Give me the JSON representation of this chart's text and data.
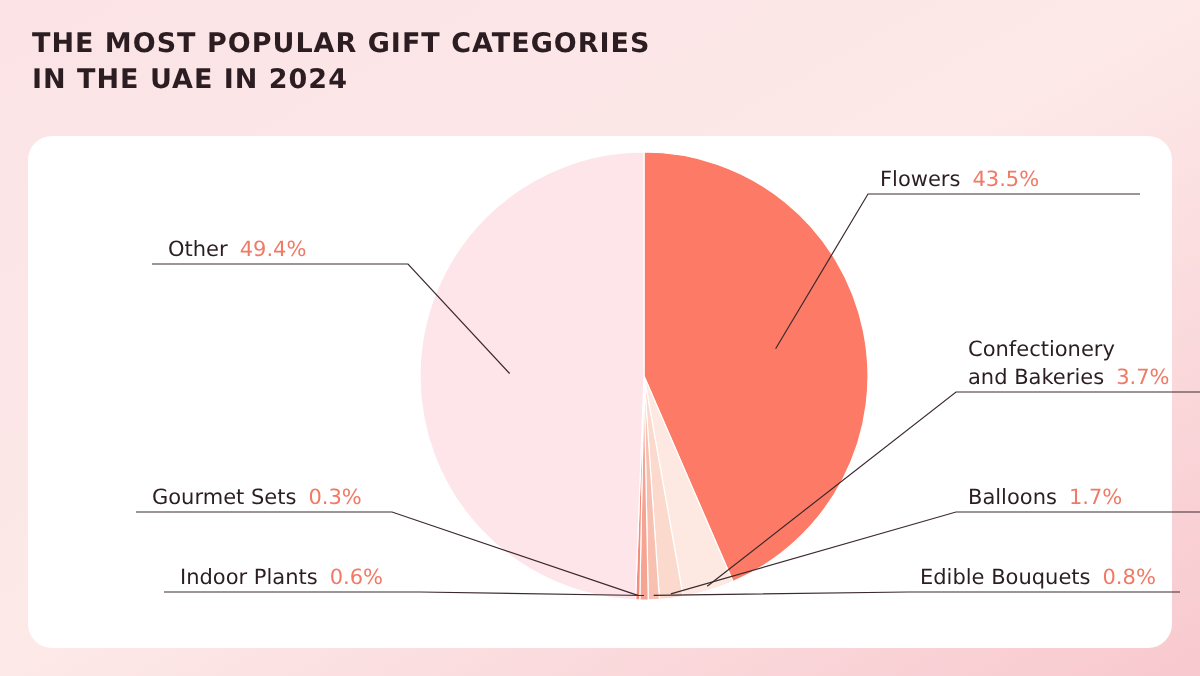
{
  "chart_data": {
    "type": "pie",
    "title": "THE MOST POPULAR GIFT CATEGORIES IN THE UAE IN 2024",
    "categories": [
      "Flowers",
      "Confectionery and Bakeries",
      "Balloons",
      "Edible Bouquets",
      "Indoor Plants",
      "Gourmet Sets",
      "Other"
    ],
    "values": [
      43.5,
      3.7,
      1.7,
      0.8,
      0.6,
      0.3,
      49.4
    ],
    "value_labels": [
      "43.5%",
      "3.7%",
      "1.7%",
      "0.8%",
      "0.6%",
      "0.3%",
      "49.4%"
    ],
    "colors": [
      "#fd7b66",
      "#fde9e1",
      "#fbdacd",
      "#f8c0b0",
      "#f5a393",
      "#f28c7c",
      "#fde5ea"
    ]
  }
}
